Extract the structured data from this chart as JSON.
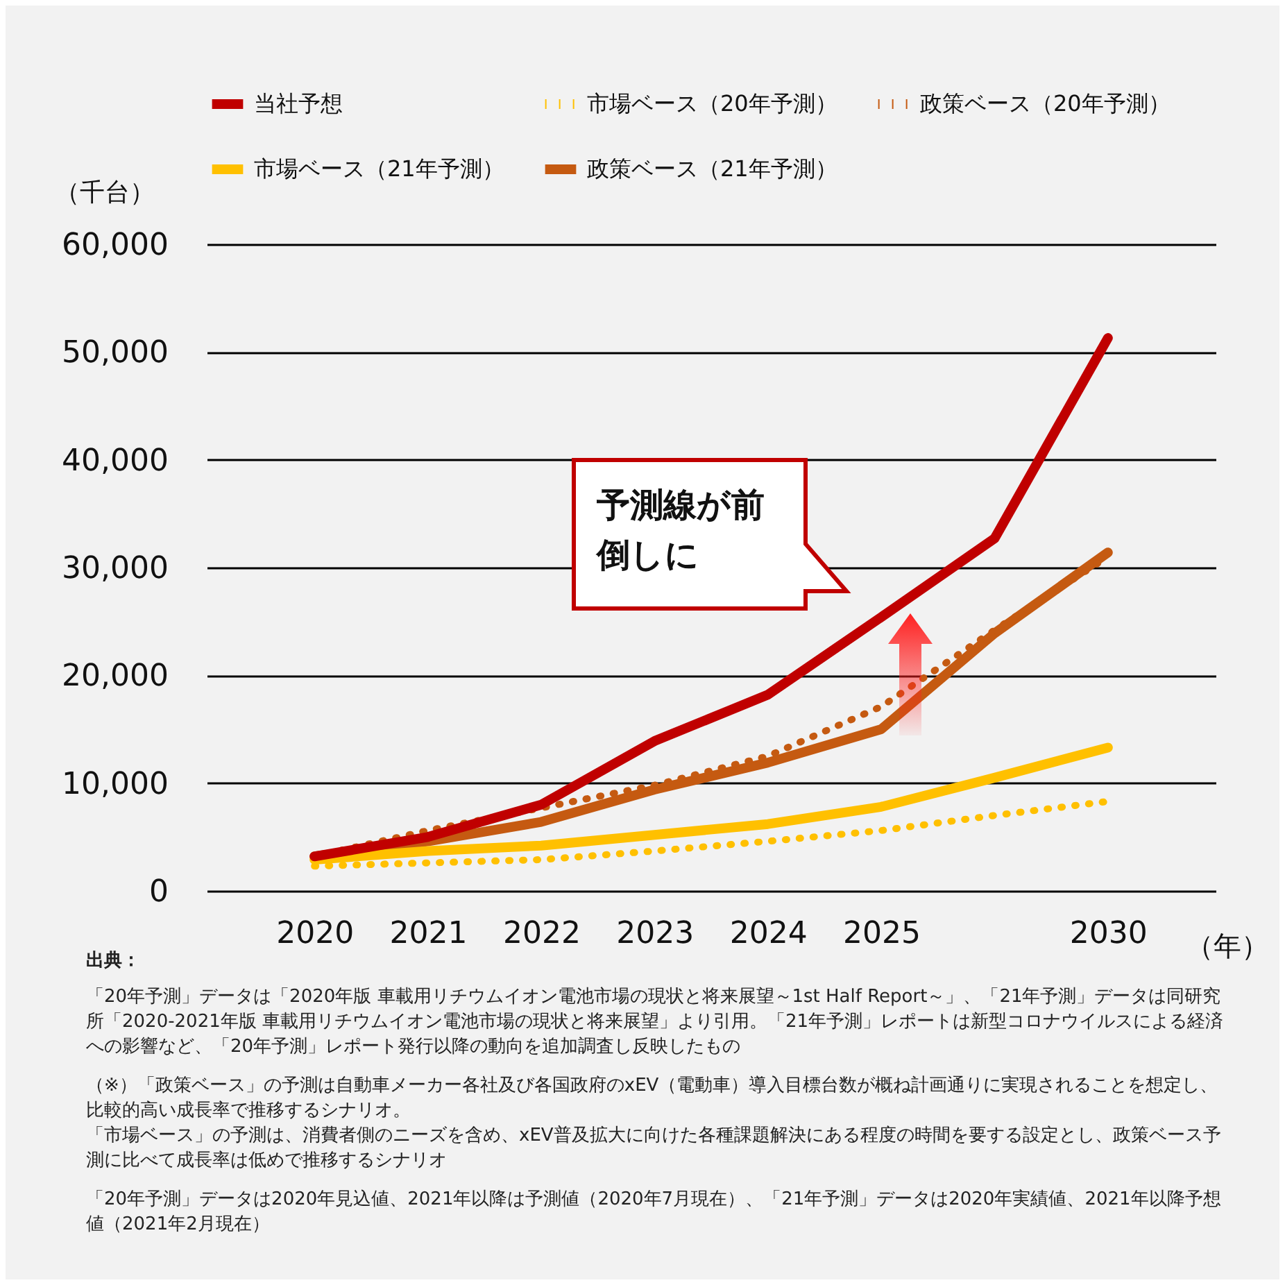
{
  "chart_data": {
    "type": "line",
    "ylabel": "（千台）",
    "xlabel": "（年）",
    "categories": [
      "2020",
      "2021",
      "2022",
      "2023",
      "2024",
      "2025",
      null,
      "2030"
    ],
    "series": [
      {
        "name": "当社予想",
        "color": "#c00000",
        "line_style": "solid",
        "values": [
          3200,
          5000,
          8000,
          13900,
          18200,
          25400,
          32700,
          51300
        ]
      },
      {
        "name": "市場ベース（20年予測）",
        "color": "#ffc000",
        "line_style": "dotted",
        "values": [
          2300,
          2600,
          2900,
          3700,
          4600,
          5600,
          7000,
          8300
        ]
      },
      {
        "name": "政策ベース（20年予測）",
        "color": "#c55a11",
        "line_style": "dotted",
        "values": [
          3200,
          5600,
          7700,
          9800,
          12500,
          17100,
          24200,
          31000
        ]
      },
      {
        "name": "市場ベース（21年予測）",
        "color": "#ffc000",
        "line_style": "solid",
        "values": [
          2900,
          3700,
          4200,
          5200,
          6200,
          7800,
          10500,
          13300
        ]
      },
      {
        "name": "政策ベース（21年予測）",
        "color": "#c55a11",
        "line_style": "solid",
        "values": [
          3200,
          4600,
          6400,
          9400,
          11900,
          15000,
          23900,
          31400
        ]
      }
    ],
    "ylim": [
      0,
      60000
    ],
    "yticks": [
      0,
      {
        "value": 10000,
        "label": "10,000"
      },
      {
        "value": 20000,
        "label": "20,000"
      },
      {
        "value": 30000,
        "label": "30,000"
      },
      {
        "value": 40000,
        "label": "40,000"
      },
      {
        "value": 50000,
        "label": "50,000"
      },
      {
        "value": 60000,
        "label": "60,000"
      }
    ],
    "grid": "y",
    "legend": "top",
    "annotations": [
      "予測線が前倒しに",
      "出典：",
      "「20年予測」データは「2020年版 車載用リチウムイオン電池市場の現状と将来展望～1st Half Report～」、「21年予測」データは同研究所「2020-2021年版 車載用リチウムイオン電池市場の現状と将来展望」より引用。「21年予測」レポートは新型コロナウイルスによる経済への影響など、「20年予測」レポート発行以降の動向を追加調査し反映したもの",
      "（※）「政策ベース」の予測は自動車メーカー各社及び各国政府のxEV（電動車）導入目標台数が概ね計画通りに実現されることを想定し、比較的高い成長率で推移するシナリオ。",
      "「市場ベース」の予測は、消費者側のニーズを含め、xEV普及拡大に向けた各種課題解決にある程度の時間を要する設定とし、政策ベース予測に比べて成長率は低めで推移するシナリオ",
      "「20年予測」データは2020年見込値、2021年以降は予測値（2020年7月現在）、「21年予測」データは2020年実績値、2021年以降予想値（2021年2月現在）"
    ]
  }
}
